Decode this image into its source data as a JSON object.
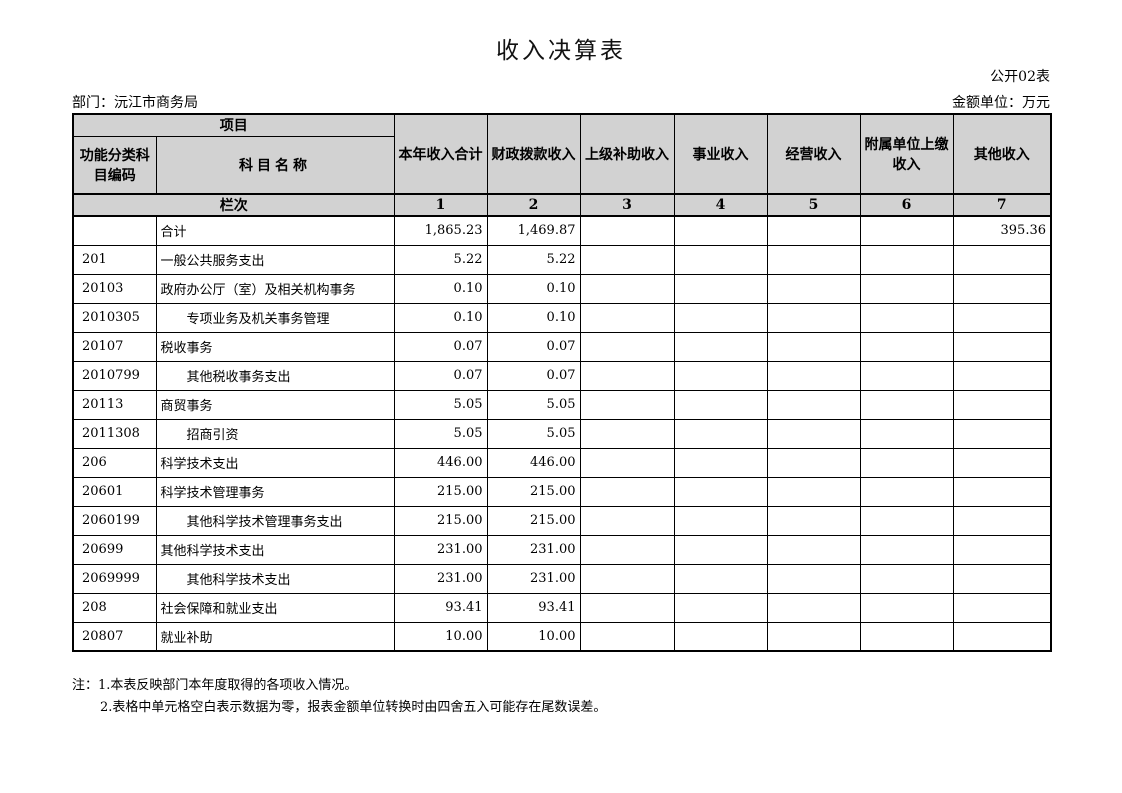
{
  "page": {
    "title": "收入决算表",
    "table_code": "公开02表",
    "department_label": "部门：沅江市商务局",
    "unit_label": "金额单位：万元"
  },
  "table": {
    "header": {
      "project": "项目",
      "code": "功能分类科目编码",
      "name": "科目名称",
      "columns": [
        "本年收入合计",
        "财政拨款收入",
        "上级补助收入",
        "事业收入",
        "经营收入",
        "附属单位上缴收入",
        "其他收入"
      ],
      "rank_label": "栏次",
      "rank_numbers": [
        "1",
        "2",
        "3",
        "4",
        "5",
        "6",
        "7"
      ]
    },
    "rows": [
      {
        "code": "",
        "name": "合计",
        "indent": false,
        "values": [
          "1,865.23",
          "1,469.87",
          "",
          "",
          "",
          "",
          "395.36"
        ]
      },
      {
        "code": "201",
        "name": "一般公共服务支出",
        "indent": false,
        "values": [
          "5.22",
          "5.22",
          "",
          "",
          "",
          "",
          ""
        ]
      },
      {
        "code": "20103",
        "name": "政府办公厅（室）及相关机构事务",
        "indent": false,
        "values": [
          "0.10",
          "0.10",
          "",
          "",
          "",
          "",
          ""
        ]
      },
      {
        "code": "2010305",
        "name": "专项业务及机关事务管理",
        "indent": true,
        "values": [
          "0.10",
          "0.10",
          "",
          "",
          "",
          "",
          ""
        ]
      },
      {
        "code": "20107",
        "name": "税收事务",
        "indent": false,
        "values": [
          "0.07",
          "0.07",
          "",
          "",
          "",
          "",
          ""
        ]
      },
      {
        "code": "2010799",
        "name": "其他税收事务支出",
        "indent": true,
        "values": [
          "0.07",
          "0.07",
          "",
          "",
          "",
          "",
          ""
        ]
      },
      {
        "code": "20113",
        "name": "商贸事务",
        "indent": false,
        "values": [
          "5.05",
          "5.05",
          "",
          "",
          "",
          "",
          ""
        ]
      },
      {
        "code": "2011308",
        "name": "招商引资",
        "indent": true,
        "values": [
          "5.05",
          "5.05",
          "",
          "",
          "",
          "",
          ""
        ]
      },
      {
        "code": "206",
        "name": "科学技术支出",
        "indent": false,
        "values": [
          "446.00",
          "446.00",
          "",
          "",
          "",
          "",
          ""
        ]
      },
      {
        "code": "20601",
        "name": "科学技术管理事务",
        "indent": false,
        "values": [
          "215.00",
          "215.00",
          "",
          "",
          "",
          "",
          ""
        ]
      },
      {
        "code": "2060199",
        "name": "其他科学技术管理事务支出",
        "indent": true,
        "values": [
          "215.00",
          "215.00",
          "",
          "",
          "",
          "",
          ""
        ]
      },
      {
        "code": "20699",
        "name": "其他科学技术支出",
        "indent": false,
        "values": [
          "231.00",
          "231.00",
          "",
          "",
          "",
          "",
          ""
        ]
      },
      {
        "code": "2069999",
        "name": "其他科学技术支出",
        "indent": true,
        "values": [
          "231.00",
          "231.00",
          "",
          "",
          "",
          "",
          ""
        ]
      },
      {
        "code": "208",
        "name": "社会保障和就业支出",
        "indent": false,
        "values": [
          "93.41",
          "93.41",
          "",
          "",
          "",
          "",
          ""
        ]
      },
      {
        "code": "20807",
        "name": "就业补助",
        "indent": false,
        "values": [
          "10.00",
          "10.00",
          "",
          "",
          "",
          "",
          ""
        ]
      }
    ],
    "notes": [
      "注：1.本表反映部门本年度取得的各项收入情况。",
      "2.表格中单元格空白表示数据为零，报表金额单位转换时由四舍五入可能存在尾数误差。"
    ]
  },
  "colors": {
    "header_bg": "#d2d2d2",
    "border": "#000000",
    "background": "#ffffff"
  }
}
